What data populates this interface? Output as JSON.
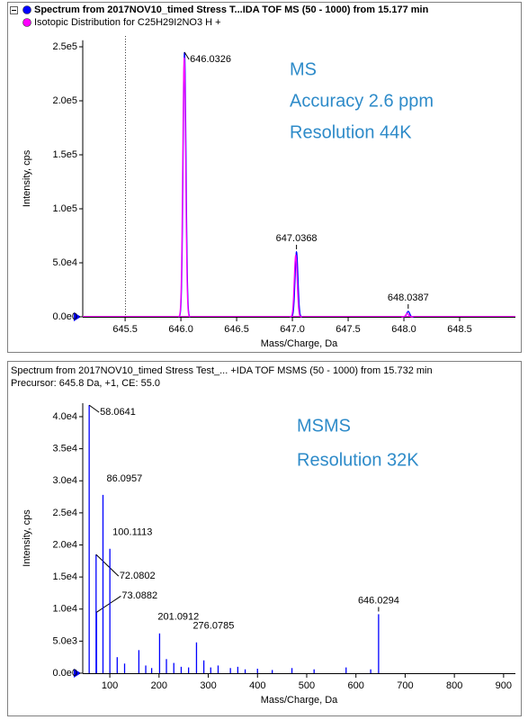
{
  "chart_data": [
    {
      "type": "profile",
      "series": [
        {
          "name": "Spectrum from 2017NOV10_timed Stress T...IDA TOF MS (50 - 1000) from 15.177 min",
          "color": "#0000ff",
          "x": [
            646.0326,
            647.0368,
            648.0387
          ],
          "values": [
            245000,
            60000,
            5000
          ],
          "peak_labels": [
            "646.0326",
            "647.0368",
            "648.0387"
          ]
        },
        {
          "name": "Isotopic Distribution for C25H29I2NO3 H +",
          "color": "#ff00ff",
          "x": [
            646.03,
            647.03,
            648.03
          ],
          "values": [
            240000,
            57000,
            3000
          ]
        }
      ],
      "annotations": [
        "MS",
        "Accuracy 2.6 ppm",
        "Resolution 44K"
      ],
      "xlabel": "Mass/Charge, Da",
      "ylabel": "Intensity, cps",
      "xlim": [
        645.12,
        649.0
      ],
      "ylim": [
        0,
        256000
      ],
      "xticks": [
        645.5,
        {
          "value": 646,
          "label": "646.0"
        },
        646.5,
        {
          "value": 647,
          "label": "647.0"
        },
        647.5,
        {
          "value": 648,
          "label": "648.0"
        },
        648.5
      ],
      "yticks": [
        {
          "value": 0,
          "label": "0.0e0"
        },
        {
          "value": 50000,
          "label": "5.0e4"
        },
        {
          "value": 100000,
          "label": "1.0e5"
        },
        {
          "value": 150000,
          "label": "1.5e5"
        },
        {
          "value": 200000,
          "label": "2.0e5"
        },
        {
          "value": 250000,
          "label": "2.5e5"
        }
      ]
    },
    {
      "type": "stem",
      "title": "Spectrum from 2017NOV10_timed Stress Test_... +IDA TOF MSMS (50 - 1000) from 15.732 min",
      "subtitle": "Precursor: 645.8 Da, +1, CE: 55.0",
      "series": [
        {
          "color": "#0000ff",
          "x": [
            58.0641,
            72.0802,
            73.0882,
            86.0957,
            100.1113,
            115,
            130,
            159,
            173,
            185,
            201.0912,
            215,
            230,
            245,
            260,
            276.0785,
            291,
            305,
            320,
            345,
            360,
            375,
            400,
            430,
            470,
            515,
            580,
            630,
            646.0294
          ],
          "values": [
            41800,
            18500,
            9500,
            27800,
            19400,
            2500,
            1500,
            3600,
            1200,
            800,
            6200,
            2200,
            1600,
            1000,
            900,
            4800,
            2000,
            900,
            1200,
            800,
            1000,
            600,
            700,
            500,
            800,
            600,
            900,
            600,
            9200
          ],
          "peak_labels": [
            "58.0641",
            "72.0802",
            "73.0882",
            "86.0957",
            "100.1113",
            null,
            null,
            null,
            null,
            null,
            "201.0912",
            null,
            null,
            null,
            null,
            "276.0785",
            null,
            null,
            null,
            null,
            null,
            null,
            null,
            null,
            null,
            null,
            null,
            null,
            "646.0294"
          ]
        }
      ],
      "annotations": [
        "MSMS",
        "Resolution 32K"
      ],
      "xlabel": "Mass/Charge, Da",
      "ylabel": "Intensity, cps",
      "xlim": [
        45,
        924
      ],
      "ylim": [
        0,
        42100
      ],
      "xticks": [
        100,
        200,
        300,
        400,
        500,
        600,
        700,
        800,
        900
      ],
      "yticks": [
        {
          "value": 0,
          "label": "0.0e0"
        },
        {
          "value": 5000,
          "label": "5.0e3"
        },
        {
          "value": 10000,
          "label": "1.0e4"
        },
        {
          "value": 15000,
          "label": "1.5e4"
        },
        {
          "value": 20000,
          "label": "2.0e4"
        },
        {
          "value": 25000,
          "label": "2.5e4"
        },
        {
          "value": 30000,
          "label": "3.0e4"
        },
        {
          "value": 35000,
          "label": "3.5e4"
        },
        {
          "value": 40000,
          "label": "4.0e4"
        }
      ]
    }
  ]
}
